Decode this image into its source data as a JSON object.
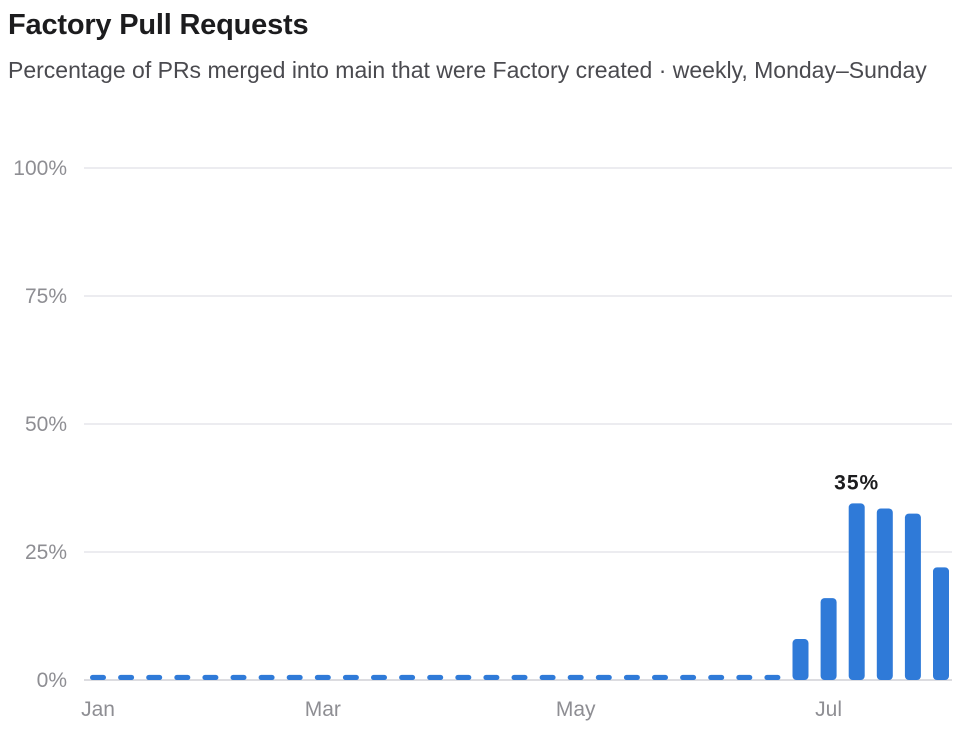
{
  "chart_data": {
    "type": "bar",
    "title": "Factory Pull Requests",
    "subtitle": "Percentage of PRs merged into main that were Factory created · weekly, Monday–Sunday",
    "ylim": [
      0,
      100
    ],
    "y_ticks": [
      "0%",
      "25%",
      "50%",
      "75%",
      "100%"
    ],
    "y_tick_values": [
      0,
      25,
      50,
      75,
      100
    ],
    "x_tick_labels": [
      {
        "label": "Jan",
        "index": 0
      },
      {
        "label": "Mar",
        "index": 8
      },
      {
        "label": "May",
        "index": 17
      },
      {
        "label": "Jul",
        "index": 26
      }
    ],
    "values": [
      1,
      1,
      1,
      1,
      1,
      1,
      1,
      1,
      1,
      1,
      1,
      1,
      1,
      1,
      1,
      1,
      1,
      1,
      1,
      1,
      1,
      1,
      1,
      1,
      1,
      8,
      16,
      34.5,
      33.5,
      32.5,
      22
    ],
    "annotations": [
      {
        "text": "35%",
        "index": 27
      }
    ],
    "grid": true,
    "legend": "none",
    "bar_color": "#2f7ad8",
    "grid_color": "#e1e1e6",
    "axis_color": "#d1d1d6"
  }
}
